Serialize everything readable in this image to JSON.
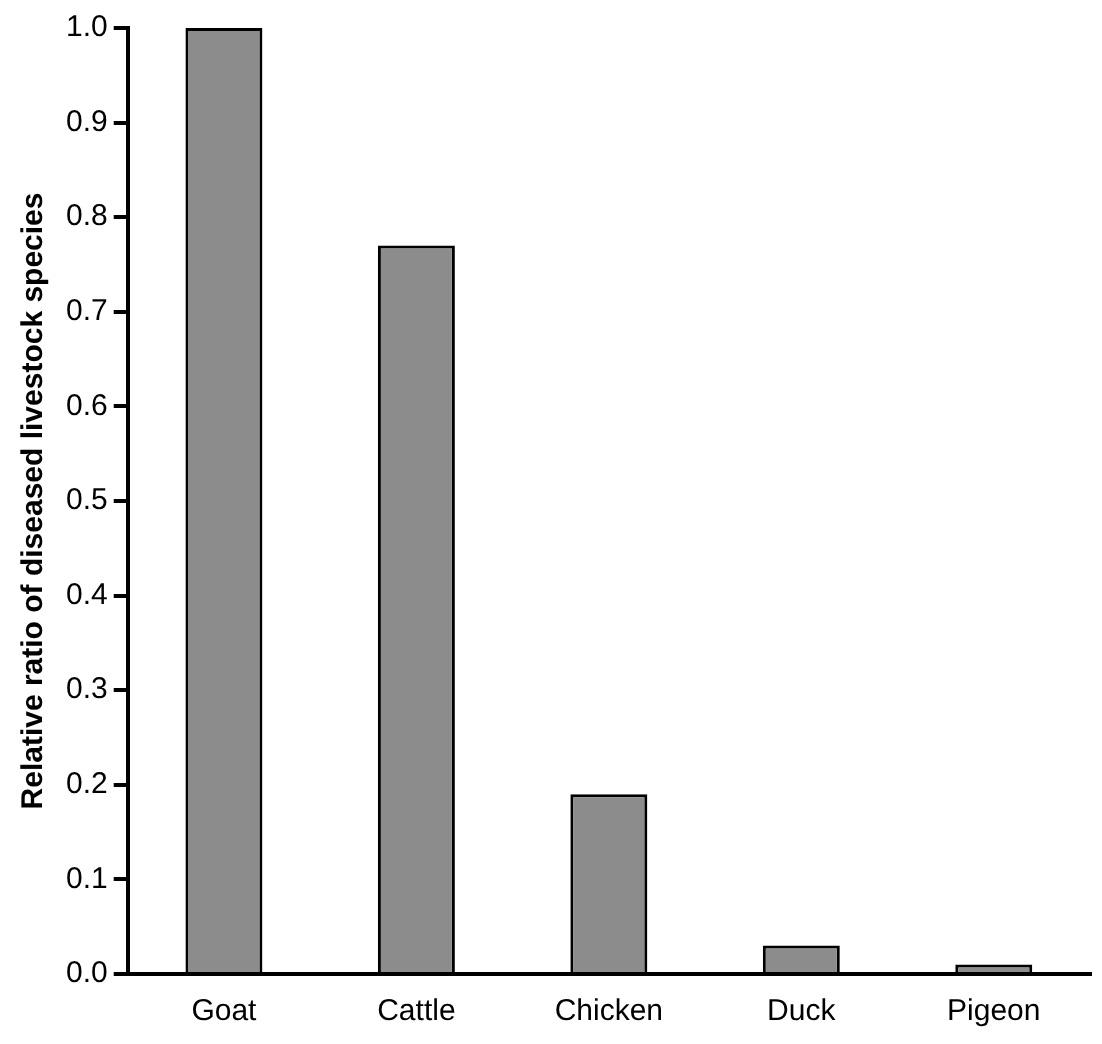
{
  "chart_data": {
    "type": "bar",
    "ylabel": "Relative ratio of diseased livestock species",
    "categories": [
      "Goat",
      "Cattle",
      "Chicken",
      "Duck",
      "Pigeon"
    ],
    "values": [
      1.0,
      0.77,
      0.19,
      0.03,
      0.01
    ],
    "color": "#8c8c8c",
    "ylim": [
      0,
      1
    ],
    "yticks": [
      {
        "value": 0,
        "label": "0.0"
      },
      0.1,
      0.2,
      0.3,
      0.4,
      0.5,
      0.6,
      0.7,
      0.8,
      0.9,
      {
        "value": 1,
        "label": "1.0"
      }
    ],
    "grid": false,
    "legend": false
  }
}
